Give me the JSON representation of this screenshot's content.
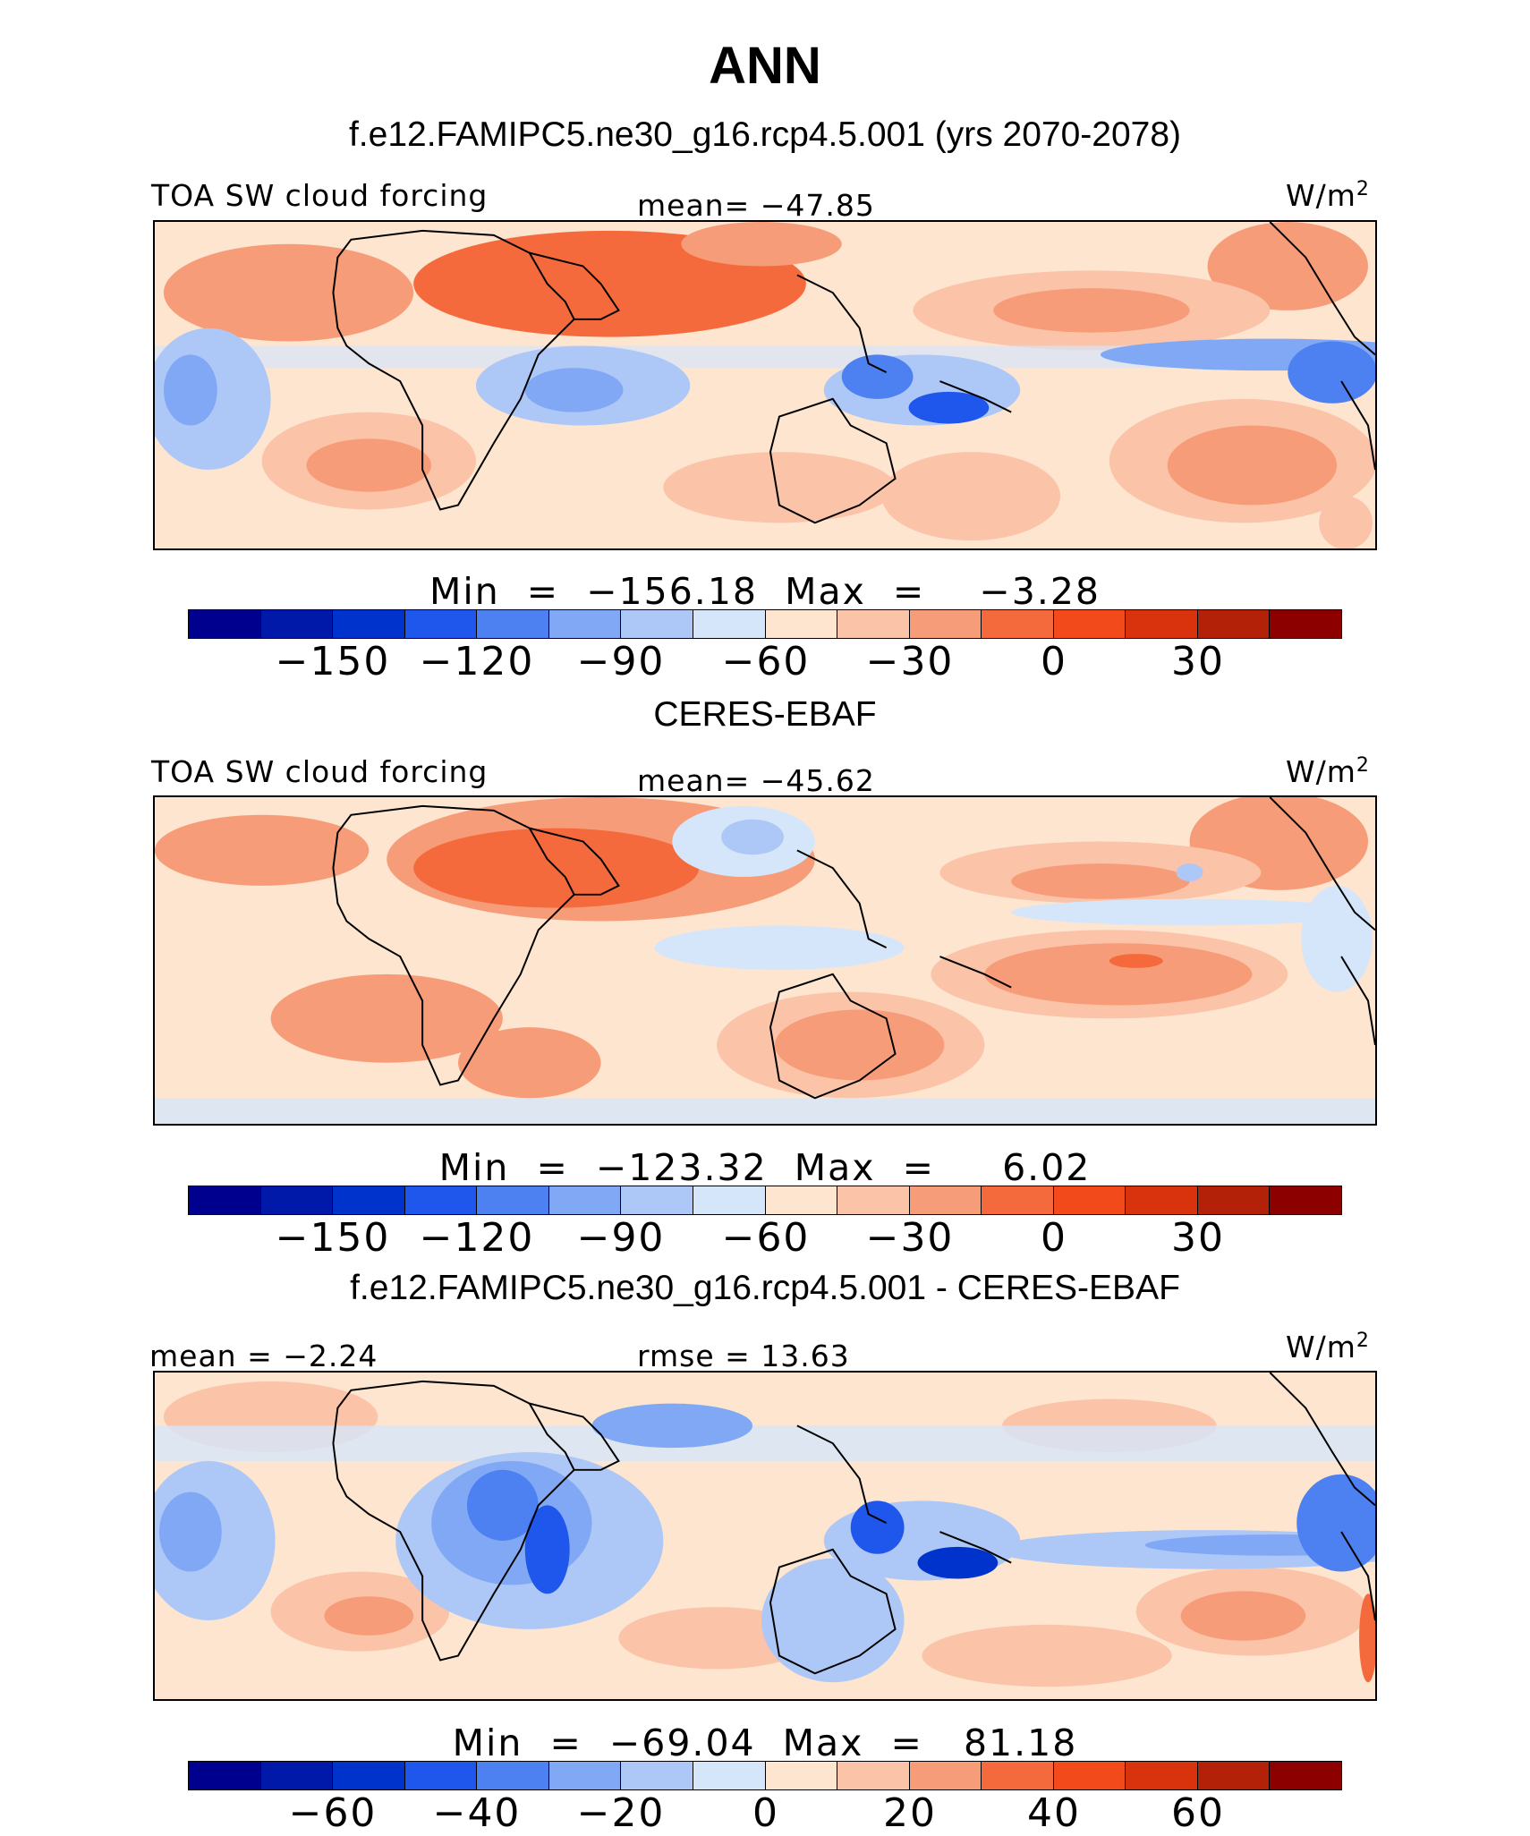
{
  "title": "ANN",
  "panels": [
    {
      "id": "model",
      "header": "f.e12.FAMIPC5.ne30_g16.rcp4.5.001 (yrs 2070-2078)",
      "left_label": "TOA SW cloud forcing",
      "center_label": "mean= −47.85",
      "units": "W/m",
      "units_sup": "2",
      "minmax": "Min  =  −156.18  Max  =    −3.28",
      "colorbar_ticks": [
        "−150",
        "−120",
        "−90",
        "−60",
        "−30",
        "0",
        "30"
      ]
    },
    {
      "id": "obs",
      "header": "CERES-EBAF",
      "left_label": "TOA SW cloud forcing",
      "center_label": "mean= −45.62",
      "units": "W/m",
      "units_sup": "2",
      "minmax": "Min  =  −123.32  Max  =     6.02",
      "colorbar_ticks": [
        "−150",
        "−120",
        "−90",
        "−60",
        "−30",
        "0",
        "30"
      ]
    },
    {
      "id": "diff",
      "header": "f.e12.FAMIPC5.ne30_g16.rcp4.5.001 - CERES-EBAF",
      "left_label": "mean  =   −2.24",
      "center_label": "rmse  =   13.63",
      "units": "W/m",
      "units_sup": "2",
      "minmax": "Min  =  −69.04  Max  =   81.18",
      "colorbar_ticks": [
        "−60",
        "−40",
        "−20",
        "0",
        "20",
        "40",
        "60"
      ]
    }
  ],
  "colorbar_colors": [
    "#00008f",
    "#0019a8",
    "#0033cc",
    "#1f57ec",
    "#4d80f0",
    "#80a8f5",
    "#adc8f7",
    "#d6e6fa",
    "#fde5cf",
    "#fbc3a8",
    "#f79c78",
    "#f56a3c",
    "#f24a1a",
    "#d9330d",
    "#b32208",
    "#8c0000"
  ]
}
